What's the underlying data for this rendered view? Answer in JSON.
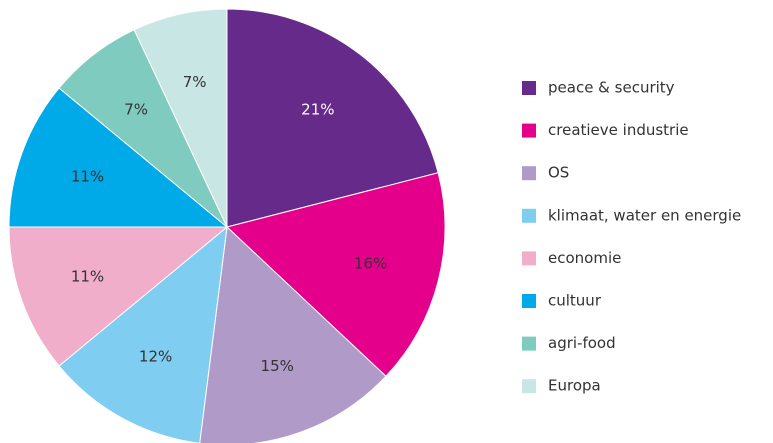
{
  "chart_data": {
    "type": "pie",
    "categories": [
      "peace & security",
      "creatieve industrie",
      "OS",
      "klimaat, water en energie",
      "economie",
      "cultuur",
      "agri-food",
      "Europa"
    ],
    "values": [
      21,
      16,
      15,
      12,
      11,
      11,
      7,
      7
    ],
    "value_labels": [
      "21%",
      "16%",
      "15%",
      "12%",
      "11%",
      "11%",
      "7%",
      "7%"
    ],
    "colors": [
      "#662a8a",
      "#e5008c",
      "#b09ac8",
      "#7fcdf0",
      "#f1aecb",
      "#00a9e8",
      "#7fcbbf",
      "#c8e6e3"
    ],
    "legend": "right"
  }
}
